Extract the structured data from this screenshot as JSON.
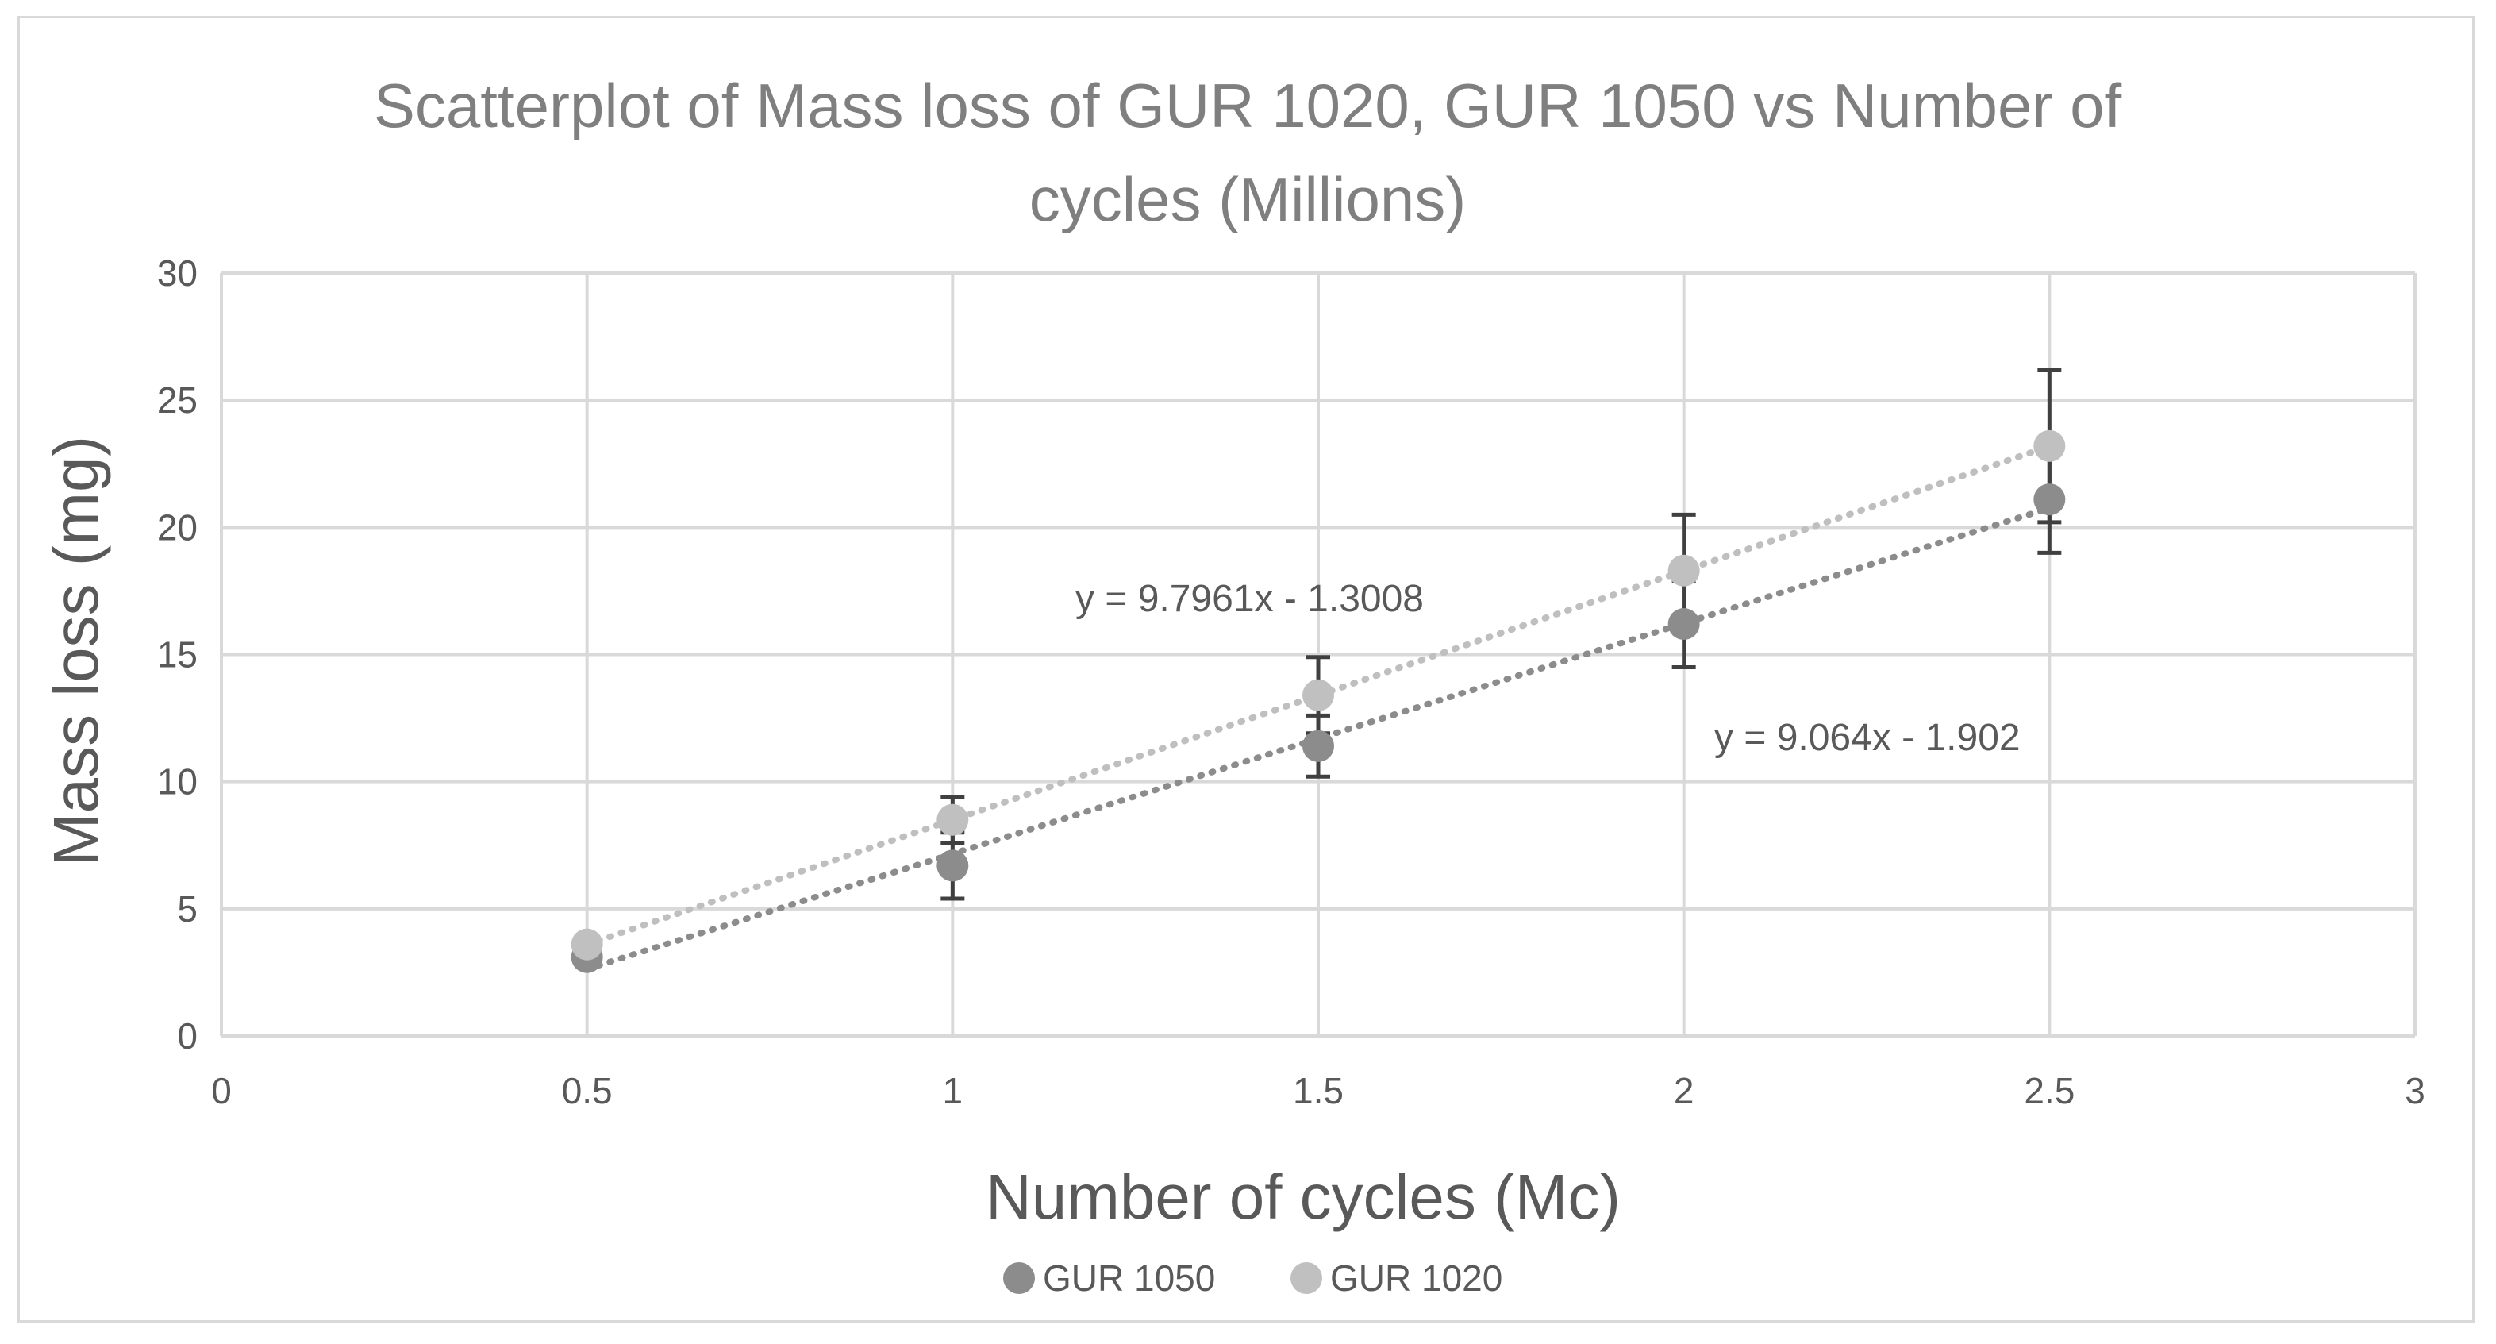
{
  "chart_data": {
    "type": "scatter",
    "title_lines": [
      "Scatterplot of Mass loss of GUR 1020, GUR 1050 vs Number of",
      "cycles (Millions)"
    ],
    "xlabel": "Number of cycles (Mc)",
    "ylabel": "Mass loss (mg)",
    "xlim": [
      0,
      3
    ],
    "ylim": [
      0,
      30
    ],
    "x_ticks": [
      {
        "value": 0,
        "label": "0"
      },
      {
        "value": 0.5,
        "label": "0.5"
      },
      {
        "value": 1,
        "label": "1"
      },
      {
        "value": 1.5,
        "label": "1.5"
      },
      {
        "value": 2,
        "label": "2"
      },
      {
        "value": 2.5,
        "label": "2.5"
      },
      {
        "value": 3,
        "label": "3"
      }
    ],
    "y_ticks": [
      {
        "value": 0,
        "label": "0"
      },
      {
        "value": 5,
        "label": "5"
      },
      {
        "value": 10,
        "label": "10"
      },
      {
        "value": 15,
        "label": "15"
      },
      {
        "value": 20,
        "label": "20"
      },
      {
        "value": 25,
        "label": "25"
      },
      {
        "value": 30,
        "label": "30"
      }
    ],
    "grid": true,
    "legend_position": "bottom",
    "series": [
      {
        "name": "GUR 1050",
        "color": "#8c8c8c",
        "trend_color": "#8c8c8c",
        "x": [
          0.5,
          1,
          1.5,
          2,
          2.5
        ],
        "y": [
          3.1,
          6.7,
          11.4,
          16.2,
          21.1
        ],
        "error": [
          0,
          1.3,
          1.2,
          1.7,
          2.1
        ],
        "trendline": {
          "slope": 9.064,
          "intercept": -1.902,
          "x_range": [
            0.5,
            2.5
          ],
          "equation": "y = 9.064x - 1.902"
        }
      },
      {
        "name": "GUR 1020",
        "color": "#c0c0c0",
        "trend_color": "#bfbfbf",
        "x": [
          0.5,
          1,
          1.5,
          2,
          2.5
        ],
        "y": [
          3.6,
          8.5,
          13.4,
          18.3,
          23.2
        ],
        "error": [
          0,
          0.9,
          1.5,
          2.2,
          3.0
        ],
        "trendline": {
          "slope": 9.7961,
          "intercept": -1.3008,
          "x_range": [
            0.5,
            2.5
          ],
          "equation": "y = 9.7961x - 1.3008"
        }
      }
    ]
  },
  "colors": {
    "grid": "#d9d9d9",
    "error_bar": "#404040"
  }
}
